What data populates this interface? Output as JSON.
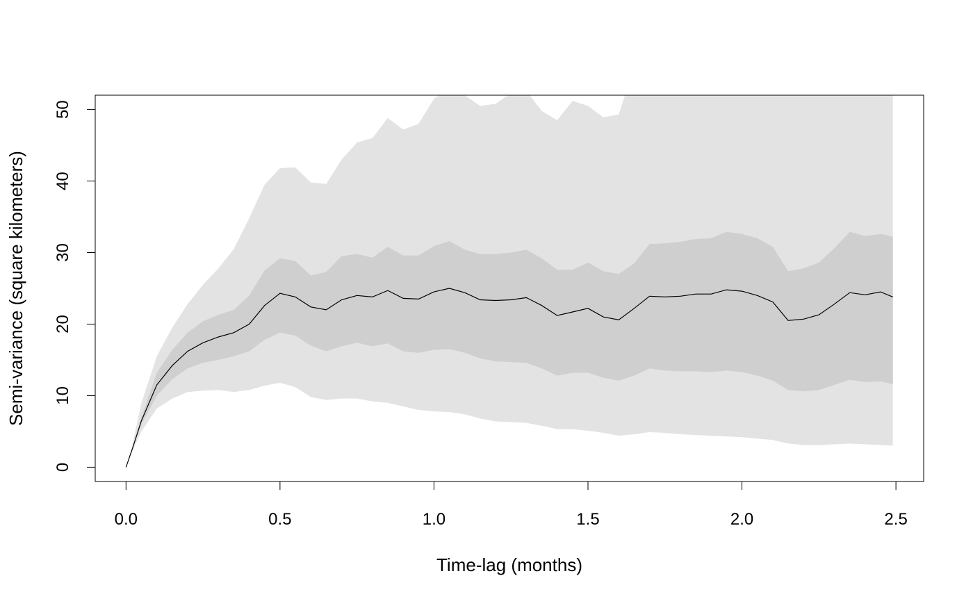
{
  "chart_data": {
    "type": "area",
    "xlabel": "Time-lag (months)",
    "ylabel": "Semi-variance (square kilometers)",
    "xlim": [
      -0.1,
      2.59
    ],
    "ylim": [
      -2,
      52
    ],
    "x_ticks": [
      0.0,
      0.5,
      1.0,
      1.5,
      2.0,
      2.5
    ],
    "x_tick_labels": [
      "0.0",
      "0.5",
      "1.0",
      "1.5",
      "2.0",
      "2.5"
    ],
    "y_ticks": [
      0,
      10,
      20,
      30,
      40,
      50
    ],
    "y_tick_labels": [
      "0",
      "10",
      "20",
      "30",
      "40",
      "50"
    ],
    "grid": false,
    "x": [
      0,
      0.02,
      0.05,
      0.1,
      0.15,
      0.2,
      0.25,
      0.3,
      0.35,
      0.4,
      0.45,
      0.5,
      0.55,
      0.6,
      0.65,
      0.7,
      0.75,
      0.8,
      0.85,
      0.9,
      0.95,
      1.0,
      1.05,
      1.1,
      1.15,
      1.2,
      1.25,
      1.3,
      1.35,
      1.4,
      1.45,
      1.5,
      1.55,
      1.6,
      1.65,
      1.7,
      1.75,
      1.8,
      1.85,
      1.9,
      1.95,
      2.0,
      2.05,
      2.1,
      2.15,
      2.2,
      2.25,
      2.3,
      2.35,
      2.4,
      2.45,
      2.49
    ],
    "series": [
      {
        "role": "estimate",
        "color": "#000000",
        "values": [
          0,
          2.5,
          6.5,
          11.5,
          14.2,
          16.2,
          17.4,
          18.2,
          18.8,
          20.0,
          22.6,
          24.3,
          23.8,
          22.4,
          22.0,
          23.4,
          24.0,
          23.8,
          24.7,
          23.6,
          23.5,
          24.5,
          25.0,
          24.4,
          23.4,
          23.3,
          23.4,
          23.7,
          22.6,
          21.2,
          21.7,
          22.2,
          21.0,
          20.6,
          22.2,
          23.9,
          23.8,
          23.9,
          24.2,
          24.2,
          24.8,
          24.6,
          24.0,
          23.1,
          20.5,
          20.7,
          21.3,
          22.8,
          24.4,
          24.1,
          24.5,
          23.8
        ]
      },
      {
        "role": "inner-band",
        "color": "#cfcfcf",
        "lower": [
          0,
          2.4,
          6.0,
          10.0,
          12.3,
          13.8,
          14.6,
          15.0,
          15.5,
          16.2,
          17.8,
          18.8,
          18.4,
          17.0,
          16.2,
          16.9,
          17.4,
          16.9,
          17.3,
          16.2,
          16.0,
          16.4,
          16.5,
          16.0,
          15.2,
          14.8,
          14.7,
          14.6,
          13.8,
          12.8,
          13.2,
          13.2,
          12.5,
          12.1,
          12.8,
          13.8,
          13.5,
          13.4,
          13.4,
          13.3,
          13.5,
          13.3,
          12.8,
          12.1,
          10.8,
          10.6,
          10.8,
          11.5,
          12.2,
          11.9,
          12.0,
          11.6
        ],
        "upper": [
          0,
          2.6,
          7.0,
          13.2,
          16.4,
          18.8,
          20.4,
          21.3,
          22.0,
          24.0,
          27.5,
          29.2,
          28.8,
          26.8,
          27.3,
          29.5,
          29.8,
          29.3,
          30.8,
          29.6,
          29.6,
          30.9,
          31.6,
          30.4,
          29.8,
          29.8,
          30.0,
          30.4,
          29.2,
          27.6,
          27.6,
          28.6,
          27.4,
          27.0,
          28.5,
          31.2,
          31.3,
          31.5,
          31.9,
          32.0,
          32.9,
          32.6,
          32.0,
          30.8,
          27.4,
          27.8,
          28.6,
          30.6,
          32.9,
          32.3,
          32.6,
          32.2
        ]
      },
      {
        "role": "outer-band",
        "color": "#e3e3e3",
        "lower": [
          0,
          2.2,
          5.0,
          8.2,
          9.6,
          10.5,
          10.7,
          10.8,
          10.5,
          10.8,
          11.4,
          11.8,
          11.2,
          9.8,
          9.4,
          9.6,
          9.6,
          9.2,
          9.0,
          8.5,
          8.0,
          7.8,
          7.7,
          7.4,
          6.8,
          6.4,
          6.3,
          6.2,
          5.8,
          5.3,
          5.3,
          5.1,
          4.8,
          4.4,
          4.6,
          4.9,
          4.8,
          4.6,
          4.5,
          4.4,
          4.3,
          4.2,
          4.0,
          3.8,
          3.3,
          3.1,
          3.1,
          3.2,
          3.3,
          3.2,
          3.1,
          3.0
        ],
        "upper": [
          0,
          3.0,
          9.0,
          15.5,
          19.5,
          22.8,
          25.5,
          27.8,
          30.5,
          34.8,
          39.5,
          41.8,
          41.9,
          39.8,
          39.6,
          43.0,
          45.4,
          46.0,
          48.8,
          47.2,
          48.0,
          51.5,
          53.0,
          52.0,
          50.5,
          50.8,
          52.3,
          52.6,
          49.8,
          48.5,
          51.2,
          50.5,
          48.9,
          49.3,
          56.0,
          57.0,
          57.0,
          57.0,
          57.0,
          57.0,
          57.0,
          57.0,
          57.0,
          57.0,
          57.0,
          57.0,
          57.0,
          57.0,
          57.0,
          57.0,
          57.0,
          57.0
        ]
      }
    ]
  }
}
